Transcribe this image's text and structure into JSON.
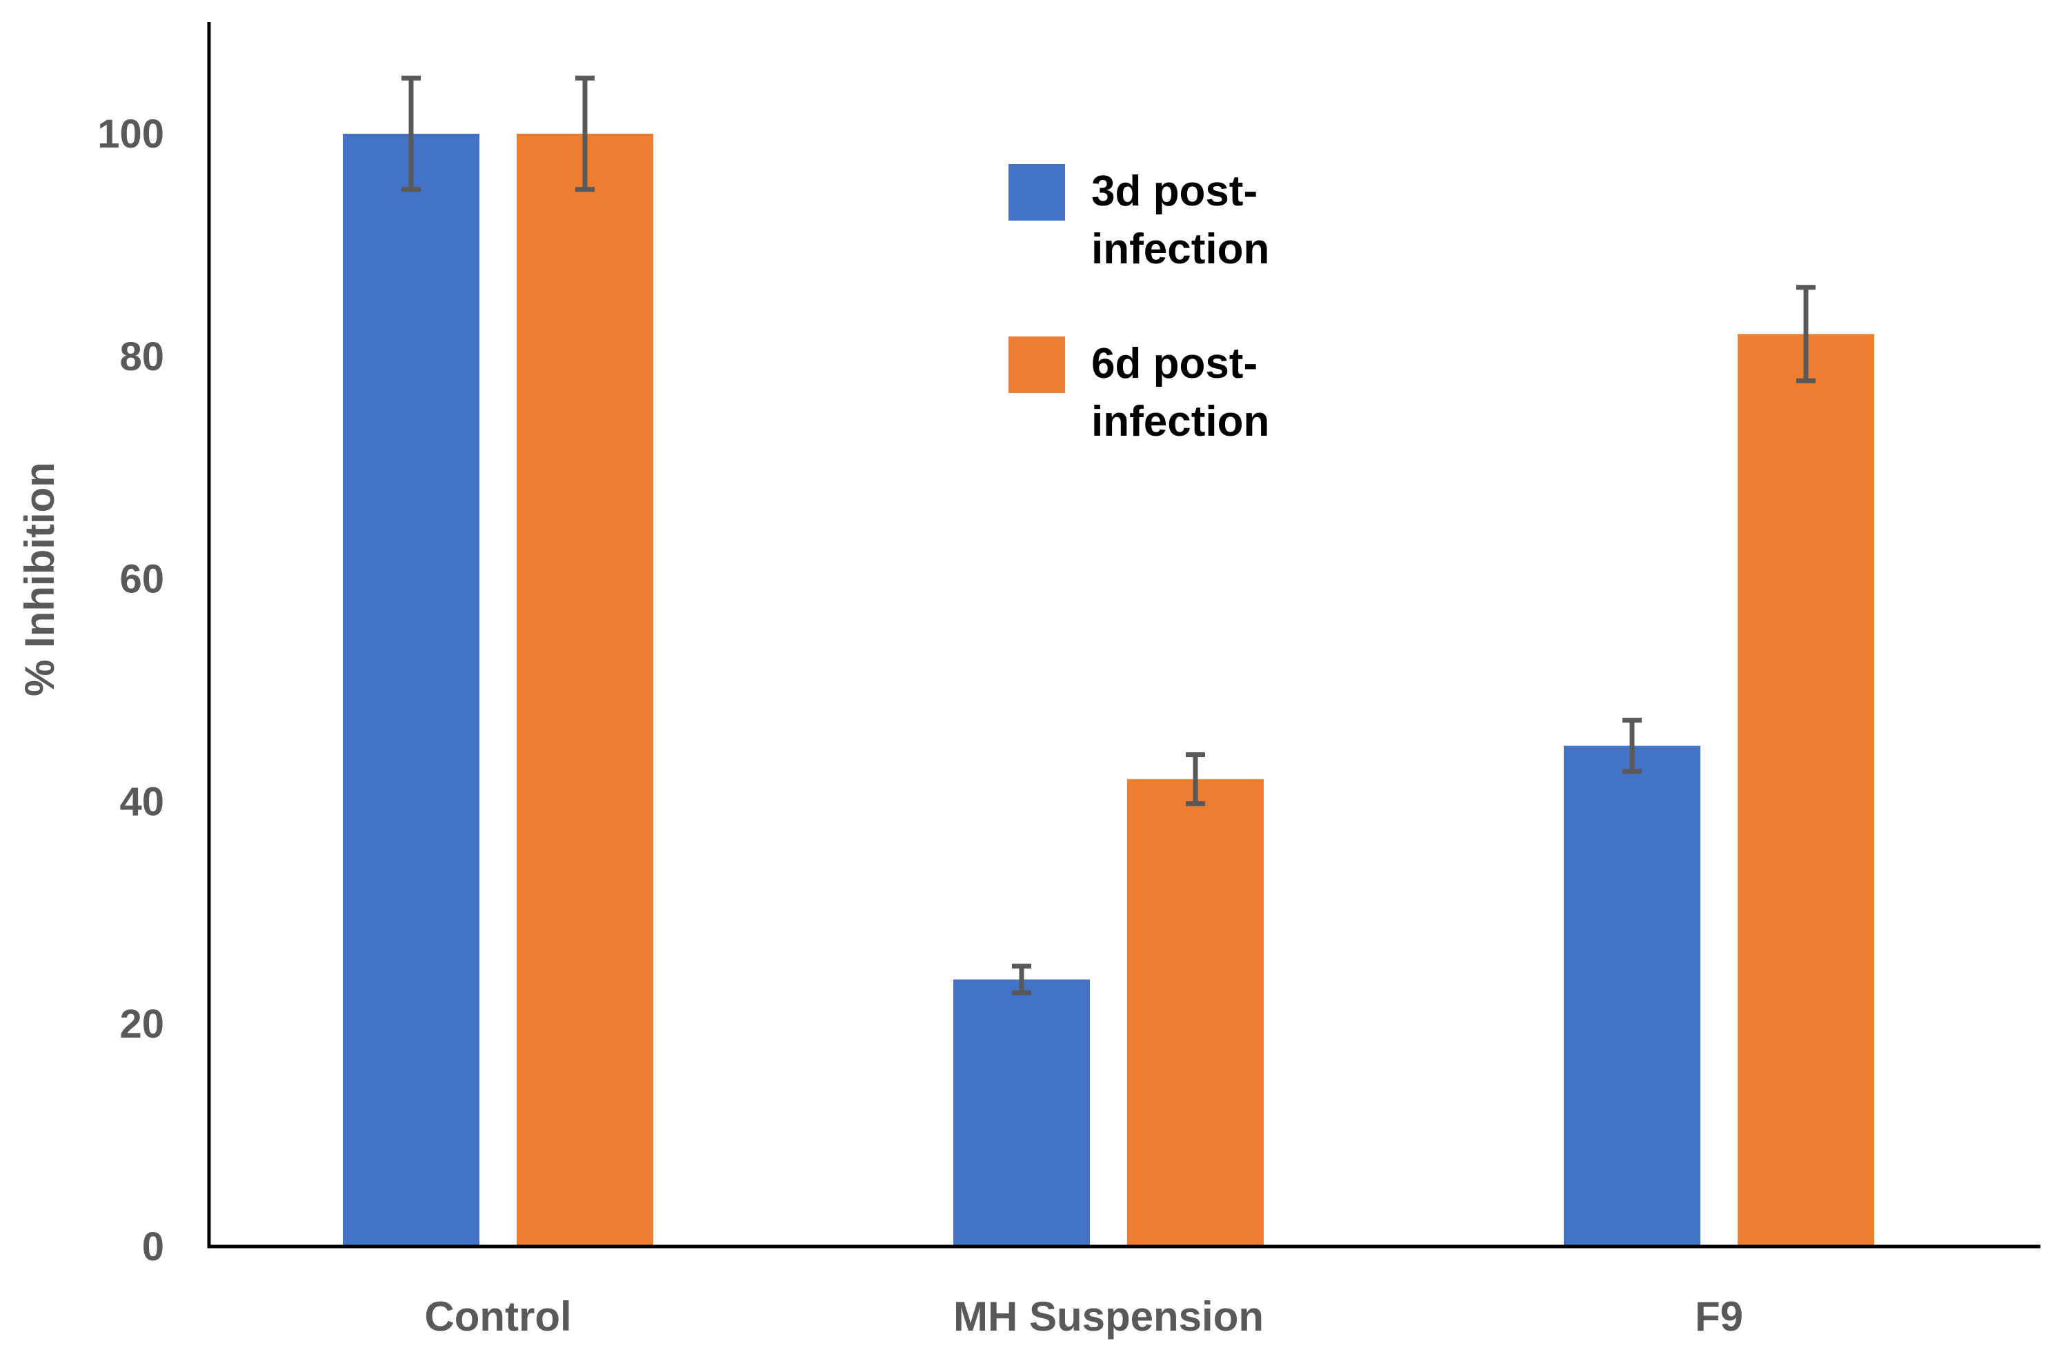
{
  "chart_data": {
    "type": "bar",
    "title": "",
    "xlabel": "",
    "ylabel": "% Inhibition",
    "ylim": [
      0,
      110
    ],
    "yticks": [
      0,
      20,
      40,
      60,
      80,
      100
    ],
    "ytick_labels": [
      "0",
      "20",
      "40",
      "60",
      "80",
      "100"
    ],
    "grid": false,
    "legend_position": "top-center",
    "categories": [
      "Control",
      "MH Suspension",
      "F9"
    ],
    "series": [
      {
        "name": "3d post-infection",
        "legend_lines": [
          "3d post-",
          "infection"
        ],
        "color": "#4472C4",
        "values": [
          100,
          24,
          45
        ],
        "errors": [
          5,
          1.2,
          2.3
        ]
      },
      {
        "name": "6d post-infection",
        "legend_lines": [
          "6d post-",
          "infection"
        ],
        "color": "#ED7D31",
        "values": [
          100,
          42,
          82
        ],
        "errors": [
          5,
          2.2,
          4.2
        ]
      }
    ],
    "error_bar_color": "#595959"
  }
}
